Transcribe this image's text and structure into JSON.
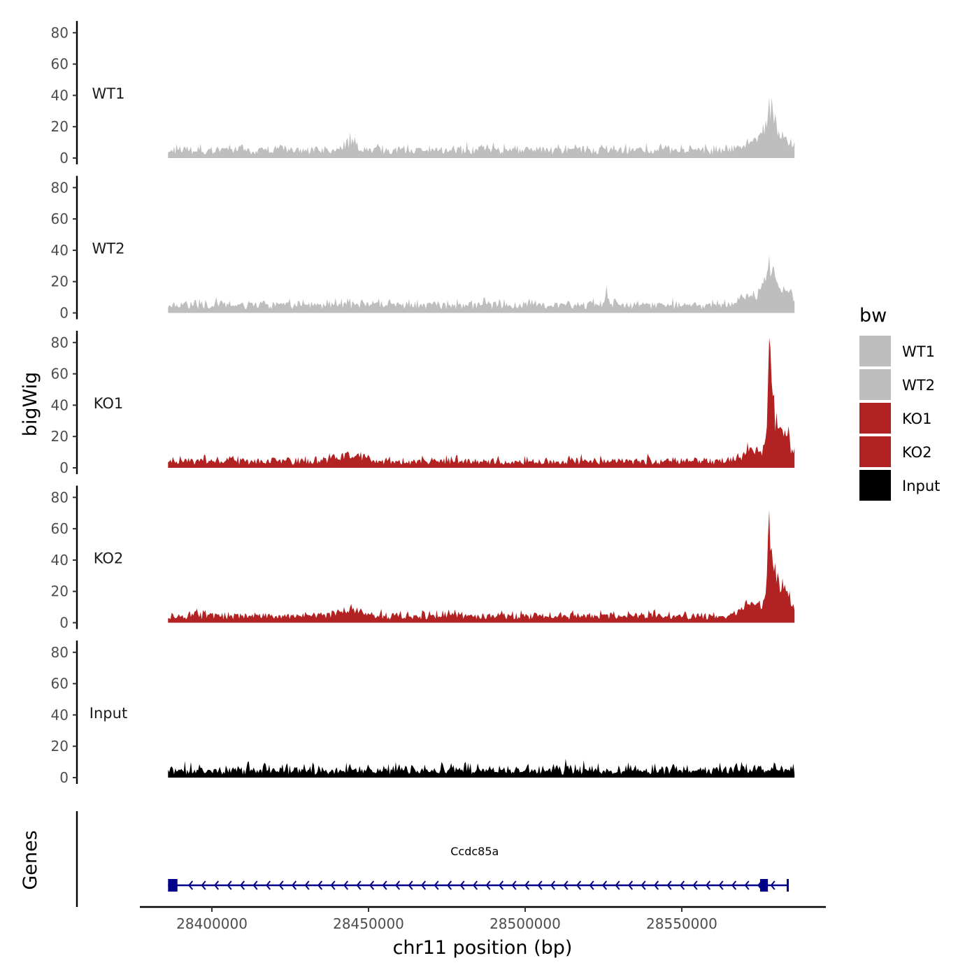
{
  "chart_data": {
    "type": "area",
    "chromosome": "chr11",
    "xlabel": "chr11 position (bp)",
    "ylabel": "bigWig",
    "gene_track_label": "Genes",
    "xlim": [
      28377000,
      28596000
    ],
    "data_range": [
      28386000,
      28586000
    ],
    "x_ticks": [
      28400000,
      28450000,
      28500000,
      28550000
    ],
    "x_tick_labels": [
      "28400000",
      "28450000",
      "28500000",
      "28550000"
    ],
    "ylim": [
      0,
      85
    ],
    "y_ticks": [
      0,
      20,
      40,
      60,
      80
    ],
    "y_tick_labels": [
      "0",
      "20",
      "40",
      "60",
      "80"
    ],
    "legend": {
      "title": "bw",
      "entries": [
        {
          "label": "WT1",
          "color": "#BEBEBE"
        },
        {
          "label": "WT2",
          "color": "#BEBEBE"
        },
        {
          "label": "KO1",
          "color": "#B22222"
        },
        {
          "label": "KO2",
          "color": "#B22222"
        },
        {
          "label": "Input",
          "color": "#000000"
        }
      ]
    },
    "series": [
      {
        "name": "WT1",
        "color": "#BEBEBE",
        "baseline": 5,
        "noise": 4,
        "seed": 11,
        "bumps": [
          [
            28444000,
            6,
            1500
          ],
          [
            28578000,
            22,
            1800
          ],
          [
            28583000,
            8,
            3000
          ],
          [
            28572000,
            5,
            3000
          ]
        ],
        "peak": [
          28578000,
          39
        ]
      },
      {
        "name": "WT2",
        "color": "#BEBEBE",
        "baseline": 5,
        "noise": 4,
        "seed": 23,
        "bumps": [
          [
            28526000,
            11,
            300
          ],
          [
            28578000,
            22,
            1800
          ],
          [
            28583000,
            8,
            3000
          ],
          [
            28572000,
            6,
            3000
          ]
        ],
        "peak": [
          28578000,
          37
        ]
      },
      {
        "name": "KO1",
        "color": "#B22222",
        "baseline": 4,
        "noise": 4,
        "seed": 37,
        "bumps": [
          [
            28444000,
            4,
            4000
          ],
          [
            28578000,
            40,
            700
          ],
          [
            28579500,
            22,
            1800
          ],
          [
            28583000,
            14,
            2500
          ],
          [
            28572000,
            8,
            2500
          ]
        ],
        "peak": [
          28578000,
          83
        ]
      },
      {
        "name": "KO2",
        "color": "#B22222",
        "baseline": 4,
        "noise": 4,
        "seed": 53,
        "bumps": [
          [
            28444000,
            4,
            4000
          ],
          [
            28578000,
            36,
            700
          ],
          [
            28579500,
            20,
            1800
          ],
          [
            28583000,
            12,
            2500
          ],
          [
            28572000,
            9,
            2500
          ]
        ],
        "peak": [
          28578000,
          72
        ]
      },
      {
        "name": "Input",
        "color": "#000000",
        "baseline": 4,
        "noise": 6,
        "seed": 71,
        "bumps": [],
        "peak": [
          28513000,
          12
        ]
      }
    ],
    "genes": [
      {
        "name": "Ccdc85a",
        "start": 28386000,
        "end": 28584000,
        "strand": "-",
        "color": "#00008B",
        "exons": [
          [
            28386000,
            28389000
          ],
          [
            28575000,
            28577500
          ],
          [
            28583500,
            28584000
          ]
        ]
      }
    ]
  }
}
